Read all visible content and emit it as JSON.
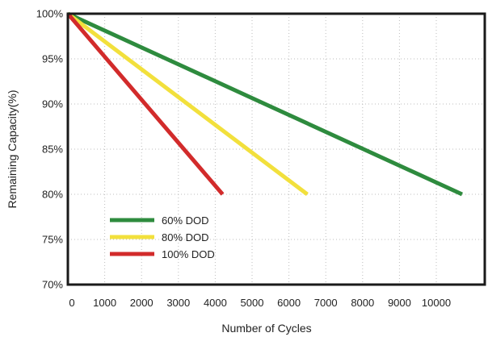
{
  "chart_data": {
    "type": "line",
    "title": "",
    "xlabel": "Number of Cycles",
    "ylabel": "Remaining Capacity(%)",
    "xlim": [
      0,
      11000
    ],
    "ylim": [
      70,
      100
    ],
    "grid": true,
    "x_ticks": [
      {
        "value": 0,
        "label": "0"
      },
      {
        "value": 1000,
        "label": "1000"
      },
      {
        "value": 2000,
        "label": "2000"
      },
      {
        "value": 3000,
        "label": "3000"
      },
      {
        "value": 4000,
        "label": "4000"
      },
      {
        "value": 5000,
        "label": "5000"
      },
      {
        "value": 6000,
        "label": "6000"
      },
      {
        "value": 7000,
        "label": "7000"
      },
      {
        "value": 8000,
        "label": "8000"
      },
      {
        "value": 9000,
        "label": "9000"
      },
      {
        "value": 10000,
        "label": "10000"
      }
    ],
    "y_ticks": [
      {
        "value": 100,
        "label": "100%"
      },
      {
        "value": 95,
        "label": "95%"
      },
      {
        "value": 90,
        "label": "90%"
      },
      {
        "value": 85,
        "label": "85%"
      },
      {
        "value": 80,
        "label": "80%"
      },
      {
        "value": 75,
        "label": "75%"
      },
      {
        "value": 70,
        "label": "70%"
      }
    ],
    "legend_position": "bottom-left",
    "series": [
      {
        "name": "60% DOD",
        "color": "#2e8b3e",
        "points": [
          [
            0,
            100
          ],
          [
            10700,
            80
          ]
        ]
      },
      {
        "name": "80% DOD",
        "color": "#f2e03c",
        "points": [
          [
            0,
            100
          ],
          [
            6500,
            80
          ]
        ]
      },
      {
        "name": "100% DOD",
        "color": "#d22b2b",
        "points": [
          [
            0,
            100
          ],
          [
            4200,
            80
          ]
        ]
      }
    ]
  }
}
